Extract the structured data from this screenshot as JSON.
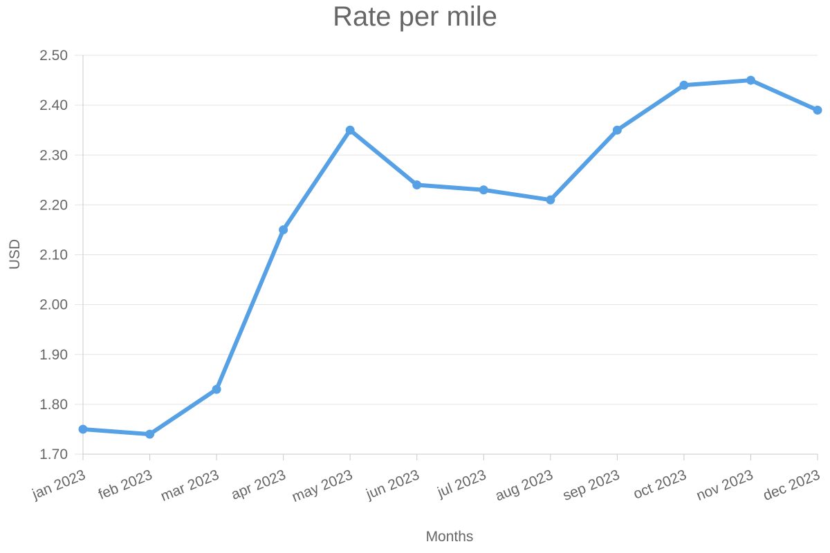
{
  "chart_data": {
    "type": "line",
    "title": "Rate per mile",
    "xlabel": "Months",
    "ylabel": "USD",
    "categories": [
      "jan 2023",
      "feb 2023",
      "mar 2023",
      "apr 2023",
      "may 2023",
      "jun 2023",
      "jul 2023",
      "aug 2023",
      "sep 2023",
      "oct 2023",
      "nov 2023",
      "dec 2023"
    ],
    "series": [
      {
        "values": [
          1.75,
          1.74,
          1.83,
          2.15,
          2.35,
          2.24,
          2.23,
          2.21,
          2.35,
          2.44,
          2.45,
          2.39
        ],
        "color": "#56a0e5"
      }
    ],
    "ylim": [
      1.7,
      2.5
    ],
    "yticks": [
      "1.70",
      "1.80",
      "1.90",
      "2.00",
      "2.10",
      "2.20",
      "2.30",
      "2.40",
      "2.50"
    ],
    "grid": true,
    "legend": "none"
  }
}
